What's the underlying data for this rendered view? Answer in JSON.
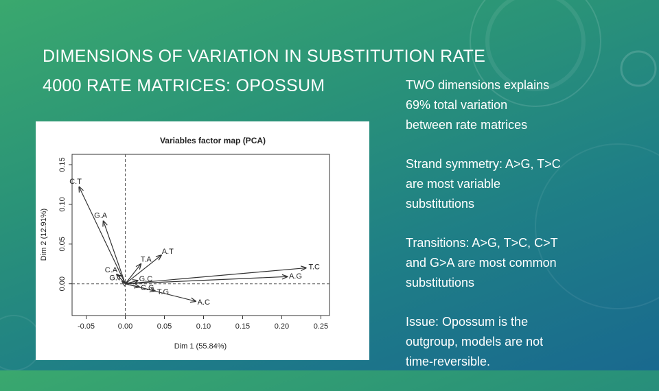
{
  "slide": {
    "title": [
      "DIMENSIONS OF VARIATION IN SUBSTITUTION RATE",
      "4000 RATE MATRICES: OPOSSUM"
    ],
    "notes": [
      [
        "TWO dimensions explains",
        "69% total variation",
        "between rate matrices"
      ],
      [
        "Strand symmetry: A>G, T>C",
        "are most variable",
        "substitutions"
      ],
      [
        "Transitions: A>G, T>C, C>T",
        "and G>A are most common",
        "substitutions"
      ],
      [
        "Issue: Opossum is the",
        "outgroup, models are not",
        "time-reversible."
      ]
    ]
  },
  "chart_data": {
    "type": "vector",
    "title": "Variables factor map (PCA)",
    "xlabel": "Dim 1 (55.84%)",
    "ylabel": "Dim 2 (12.91%)",
    "xlim": [
      -0.068,
      0.261
    ],
    "ylim": [
      -0.04,
      0.163
    ],
    "xticks": [
      -0.05,
      {
        "value": 0,
        "label": "0.00"
      },
      0.05,
      {
        "value": 0.1,
        "label": "0.10"
      },
      0.15,
      {
        "value": 0.2,
        "label": "0.20"
      },
      0.25
    ],
    "yticks": [
      {
        "value": 0,
        "label": "0.00"
      },
      0.05,
      {
        "value": 0.1,
        "label": "0.10"
      },
      0.15
    ],
    "color": "#333333",
    "vectors": [
      {
        "label": "C.T",
        "x": -0.059,
        "y": 0.122
      },
      {
        "label": "G.A",
        "x": -0.028,
        "y": 0.079
      },
      {
        "label": "A.T",
        "x": 0.046,
        "y": 0.036
      },
      {
        "label": "T.A",
        "x": 0.02,
        "y": 0.025
      },
      {
        "label": "C.A",
        "x": -0.011,
        "y": 0.012
      },
      {
        "label": "T.C",
        "x": 0.231,
        "y": 0.02
      },
      {
        "label": "A.G",
        "x": 0.207,
        "y": 0.009
      },
      {
        "label": "G.T",
        "x": -0.004,
        "y": 0.003
      },
      {
        "label": "G.C",
        "x": 0.016,
        "y": 0.004
      },
      {
        "label": "C.G",
        "x": 0.018,
        "y": -0.004
      },
      {
        "label": "T.G",
        "x": 0.038,
        "y": -0.009
      },
      {
        "label": "A.C",
        "x": 0.09,
        "y": -0.022
      }
    ]
  }
}
